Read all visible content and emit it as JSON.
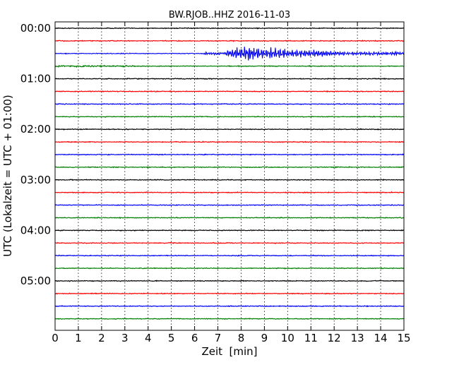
{
  "chart_data": {
    "type": "line",
    "title": "BW.RJOB..HHZ 2016-11-03",
    "xlabel": "Zeit  [min]",
    "ylabel": "UTC (Lokalzeit = UTC + 01:00)",
    "xlim": [
      0,
      15
    ],
    "x_ticks": [
      "0",
      "1",
      "2",
      "3",
      "4",
      "5",
      "6",
      "7",
      "8",
      "9",
      "10",
      "11",
      "12",
      "13",
      "14",
      "15"
    ],
    "y_ticks": [
      "00:00",
      "01:00",
      "02:00",
      "03:00",
      "04:00",
      "05:00"
    ],
    "grid": "vertical dotted lines at each minute",
    "trace_interval_minutes": 15,
    "trace_colors": [
      "#000000",
      "#ff0000",
      "#0000ff",
      "#008000"
    ],
    "traces": [
      {
        "start": "00:00",
        "color": "#000000"
      },
      {
        "start": "00:15",
        "color": "#ff0000"
      },
      {
        "start": "00:30",
        "color": "#0000ff",
        "event": {
          "onset_min": 6.4,
          "peak_min": 9.0,
          "end_min": 15.0,
          "peak_amplitude": "high"
        }
      },
      {
        "start": "00:45",
        "color": "#008000"
      },
      {
        "start": "01:00",
        "color": "#000000"
      },
      {
        "start": "01:15",
        "color": "#ff0000"
      },
      {
        "start": "01:30",
        "color": "#0000ff"
      },
      {
        "start": "01:45",
        "color": "#008000"
      },
      {
        "start": "02:00",
        "color": "#000000"
      },
      {
        "start": "02:15",
        "color": "#ff0000"
      },
      {
        "start": "02:30",
        "color": "#0000ff"
      },
      {
        "start": "02:45",
        "color": "#008000"
      },
      {
        "start": "03:00",
        "color": "#000000"
      },
      {
        "start": "03:15",
        "color": "#ff0000"
      },
      {
        "start": "03:30",
        "color": "#0000ff"
      },
      {
        "start": "03:45",
        "color": "#008000"
      },
      {
        "start": "04:00",
        "color": "#000000"
      },
      {
        "start": "04:15",
        "color": "#ff0000"
      },
      {
        "start": "04:30",
        "color": "#0000ff"
      },
      {
        "start": "04:45",
        "color": "#008000"
      },
      {
        "start": "05:00",
        "color": "#000000"
      },
      {
        "start": "05:15",
        "color": "#ff0000"
      },
      {
        "start": "05:30",
        "color": "#0000ff"
      },
      {
        "start": "05:45",
        "color": "#008000"
      }
    ]
  }
}
